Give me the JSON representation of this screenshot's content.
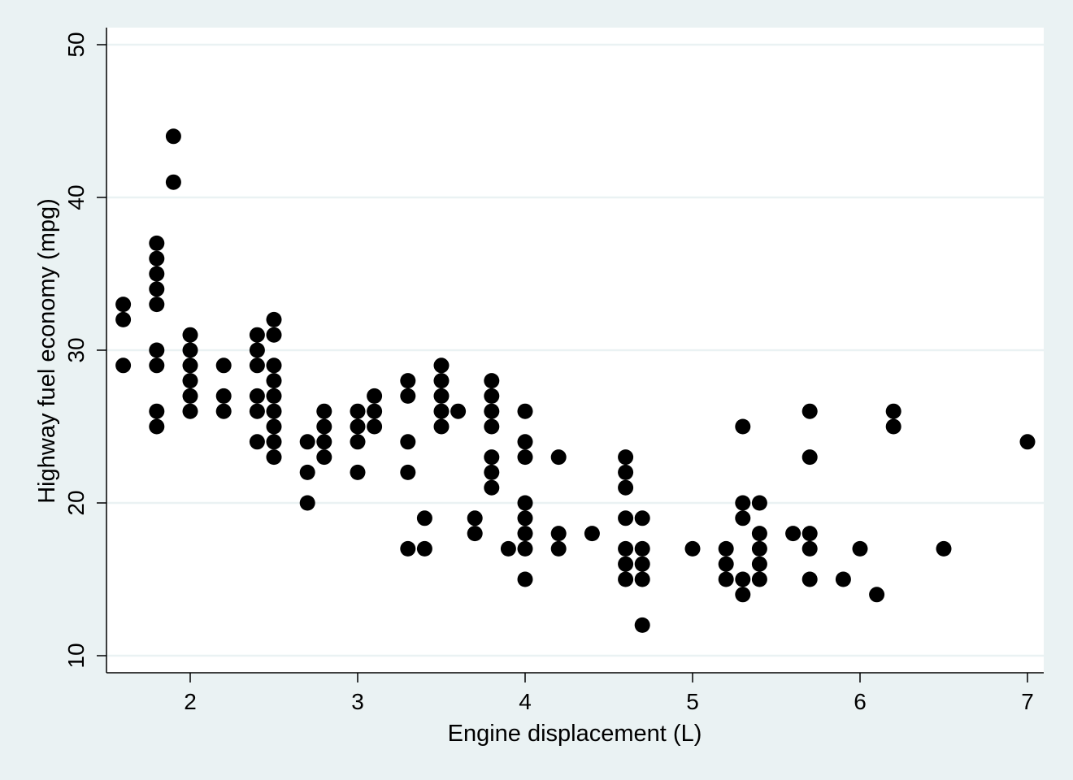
{
  "chart_data": {
    "type": "scatter",
    "title": "",
    "xlabel": "Engine displacement (L)",
    "ylabel": "Highway fuel economy (mpg)",
    "xlim": [
      1.5,
      7.1
    ],
    "ylim": [
      9,
      51
    ],
    "xticks": [
      2,
      3,
      4,
      5,
      6,
      7
    ],
    "yticks": [
      10,
      20,
      30,
      40,
      50
    ],
    "grid": "horizontal",
    "legend": "none",
    "colors": {
      "background": "#eaf2f3",
      "plot_area": "#ffffff",
      "grid": "#eaf2f3",
      "marker": "#000000"
    },
    "series": [
      {
        "points": [
          [
            1.6,
            33
          ],
          [
            1.6,
            32
          ],
          [
            1.6,
            29
          ],
          [
            1.8,
            37
          ],
          [
            1.8,
            36
          ],
          [
            1.8,
            35
          ],
          [
            1.8,
            34
          ],
          [
            1.8,
            33
          ],
          [
            1.8,
            30
          ],
          [
            1.8,
            29
          ],
          [
            1.8,
            26
          ],
          [
            1.8,
            25
          ],
          [
            1.9,
            44
          ],
          [
            1.9,
            41
          ],
          [
            2.0,
            31
          ],
          [
            2.0,
            30
          ],
          [
            2.0,
            29
          ],
          [
            2.0,
            28
          ],
          [
            2.0,
            27
          ],
          [
            2.0,
            26
          ],
          [
            2.2,
            29
          ],
          [
            2.2,
            27
          ],
          [
            2.2,
            26
          ],
          [
            2.4,
            31
          ],
          [
            2.4,
            30
          ],
          [
            2.4,
            29
          ],
          [
            2.4,
            27
          ],
          [
            2.4,
            26
          ],
          [
            2.4,
            24
          ],
          [
            2.5,
            32
          ],
          [
            2.5,
            31
          ],
          [
            2.5,
            29
          ],
          [
            2.5,
            28
          ],
          [
            2.5,
            27
          ],
          [
            2.5,
            26
          ],
          [
            2.5,
            25
          ],
          [
            2.5,
            24
          ],
          [
            2.5,
            23
          ],
          [
            2.7,
            24
          ],
          [
            2.7,
            22
          ],
          [
            2.7,
            20
          ],
          [
            2.8,
            26
          ],
          [
            2.8,
            25
          ],
          [
            2.8,
            24
          ],
          [
            2.8,
            23
          ],
          [
            3.0,
            26
          ],
          [
            3.0,
            25
          ],
          [
            3.0,
            24
          ],
          [
            3.0,
            22
          ],
          [
            3.1,
            27
          ],
          [
            3.1,
            26
          ],
          [
            3.1,
            25
          ],
          [
            3.3,
            28
          ],
          [
            3.3,
            27
          ],
          [
            3.3,
            24
          ],
          [
            3.3,
            22
          ],
          [
            3.3,
            17
          ],
          [
            3.4,
            19
          ],
          [
            3.4,
            17
          ],
          [
            3.5,
            29
          ],
          [
            3.5,
            28
          ],
          [
            3.5,
            27
          ],
          [
            3.5,
            26
          ],
          [
            3.5,
            25
          ],
          [
            3.6,
            26
          ],
          [
            3.7,
            19
          ],
          [
            3.7,
            18
          ],
          [
            3.8,
            28
          ],
          [
            3.8,
            27
          ],
          [
            3.8,
            26
          ],
          [
            3.8,
            25
          ],
          [
            3.8,
            23
          ],
          [
            3.8,
            22
          ],
          [
            3.8,
            21
          ],
          [
            3.9,
            17
          ],
          [
            4.0,
            26
          ],
          [
            4.0,
            24
          ],
          [
            4.0,
            23
          ],
          [
            4.0,
            20
          ],
          [
            4.0,
            19
          ],
          [
            4.0,
            18
          ],
          [
            4.0,
            17
          ],
          [
            4.0,
            15
          ],
          [
            4.2,
            23
          ],
          [
            4.2,
            18
          ],
          [
            4.2,
            17
          ],
          [
            4.4,
            18
          ],
          [
            4.6,
            23
          ],
          [
            4.6,
            22
          ],
          [
            4.6,
            21
          ],
          [
            4.6,
            19
          ],
          [
            4.6,
            17
          ],
          [
            4.6,
            16
          ],
          [
            4.6,
            15
          ],
          [
            4.7,
            19
          ],
          [
            4.7,
            17
          ],
          [
            4.7,
            16
          ],
          [
            4.7,
            15
          ],
          [
            4.7,
            12
          ],
          [
            5.0,
            17
          ],
          [
            5.2,
            17
          ],
          [
            5.2,
            16
          ],
          [
            5.2,
            15
          ],
          [
            5.3,
            25
          ],
          [
            5.3,
            20
          ],
          [
            5.3,
            19
          ],
          [
            5.3,
            15
          ],
          [
            5.3,
            14
          ],
          [
            5.4,
            20
          ],
          [
            5.4,
            18
          ],
          [
            5.4,
            17
          ],
          [
            5.4,
            16
          ],
          [
            5.4,
            15
          ],
          [
            5.6,
            18
          ],
          [
            5.7,
            26
          ],
          [
            5.7,
            23
          ],
          [
            5.7,
            18
          ],
          [
            5.7,
            17
          ],
          [
            5.7,
            15
          ],
          [
            5.9,
            15
          ],
          [
            6.0,
            17
          ],
          [
            6.1,
            14
          ],
          [
            6.2,
            26
          ],
          [
            6.2,
            25
          ],
          [
            6.5,
            17
          ],
          [
            7.0,
            24
          ]
        ]
      }
    ]
  }
}
